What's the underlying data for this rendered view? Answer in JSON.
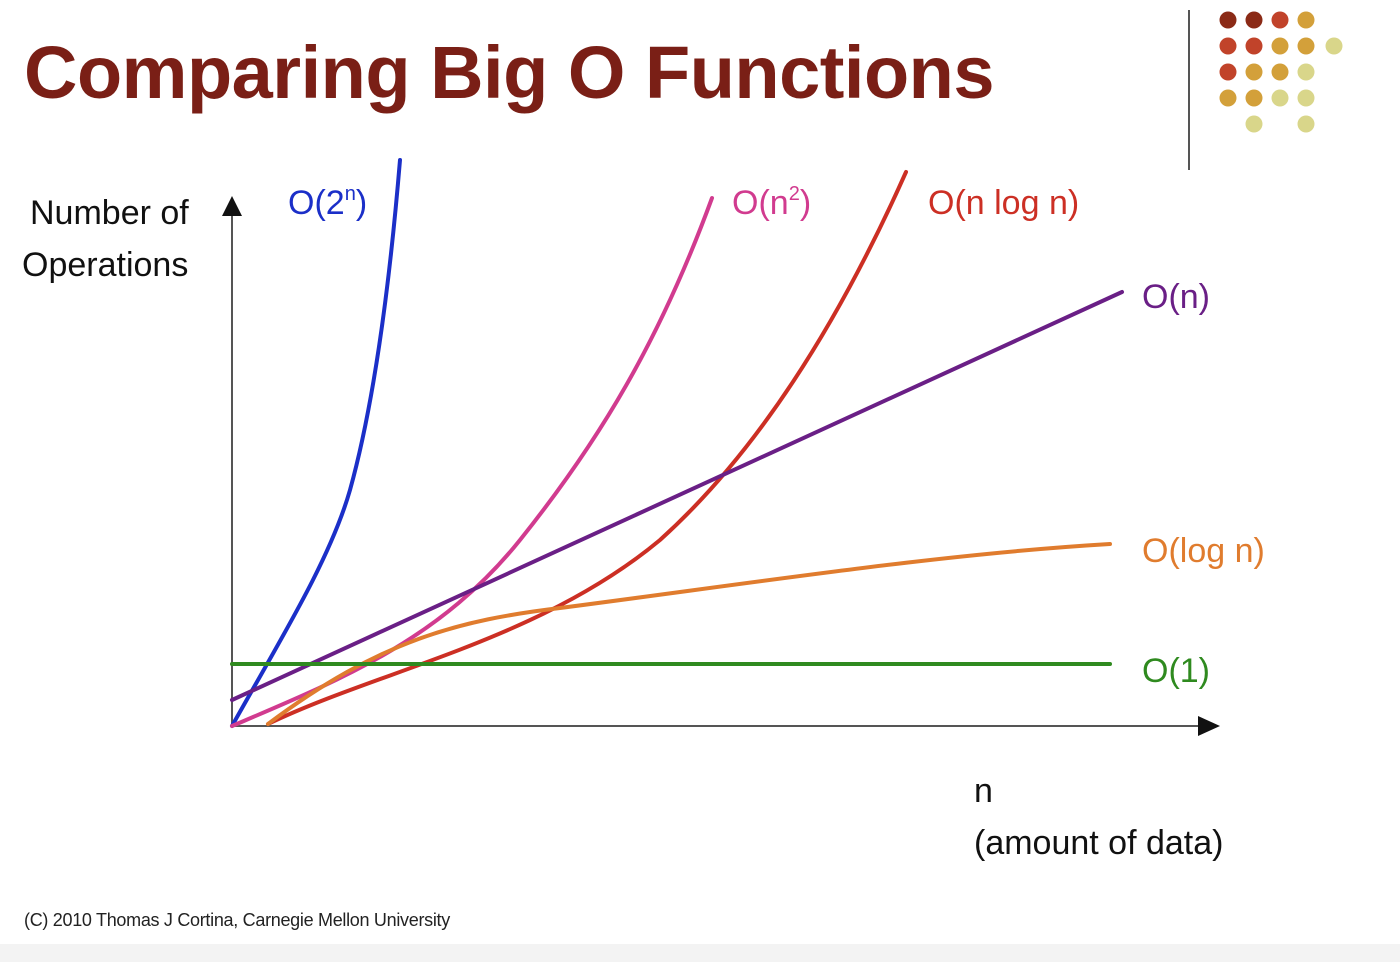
{
  "slide": {
    "title": "Comparing Big O Functions",
    "footer": "(C) 2010 Thomas J Cortina, Carnegie Mellon University"
  },
  "decor": {
    "dots_icon": "dot-grid-logo",
    "dot_colors": [
      "#8b2a16",
      "#c1432a",
      "#d3a03a",
      "#d9d68a"
    ]
  },
  "chart_data": {
    "type": "line",
    "xlabel": [
      "n",
      "(amount of data)"
    ],
    "ylabel": [
      "Number of",
      "Operations"
    ],
    "x_ticks": false,
    "y_ticks": false,
    "grid": false,
    "legend": "inline labels at line ends",
    "series": [
      {
        "name": "O(2",
        "sup": "n",
        "suffix": ")",
        "color": "#1b2fc8",
        "function": "2^n"
      },
      {
        "name": "O(n",
        "sup": "2",
        "suffix": ")",
        "color": "#d13b8f",
        "function": "n^2"
      },
      {
        "name": "O(n log n)",
        "sup": "",
        "suffix": "",
        "color": "#cc2f24",
        "function": "n log n"
      },
      {
        "name": "O(n)",
        "sup": "",
        "suffix": "",
        "color": "#6a1f86",
        "function": "n"
      },
      {
        "name": "O(log n)",
        "sup": "",
        "suffix": "",
        "color": "#e07c2e",
        "function": "log n"
      },
      {
        "name": "O(1)",
        "sup": "",
        "suffix": "",
        "color": "#2f8a1f",
        "function": "1"
      }
    ]
  }
}
